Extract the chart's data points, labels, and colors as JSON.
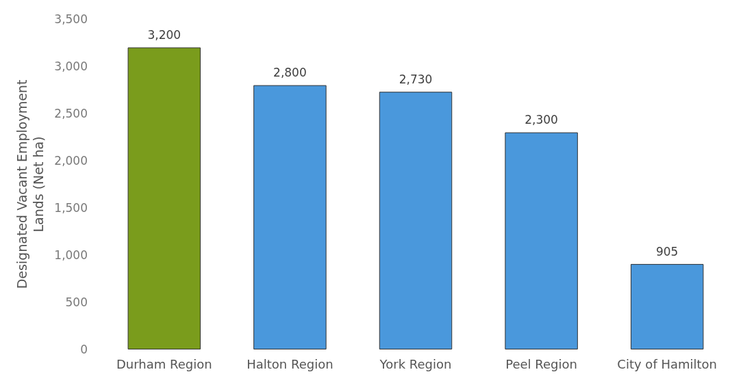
{
  "chart_data": {
    "type": "bar",
    "ylabel": "Designated Vacant Employment Lands (Net ha)",
    "categories": [
      "Durham Region",
      "Halton Region",
      "York Region",
      "Peel Region",
      "City of Hamilton"
    ],
    "values": [
      3200,
      2800,
      2730,
      2300,
      905
    ],
    "colors": [
      "#7a9c1c",
      "#4a98dc",
      "#4a98dc",
      "#4a98dc",
      "#4a98dc"
    ],
    "value_labels": [
      "3,200",
      "2,800",
      "2,730",
      "2,300",
      "905"
    ],
    "ylim": [
      0,
      3500
    ],
    "yticks": [
      {
        "value": 0,
        "label": "0"
      },
      {
        "value": 500,
        "label": "500"
      },
      {
        "value": 1000,
        "label": "1,000"
      },
      {
        "value": 1500,
        "label": "1,500"
      },
      {
        "value": 2000,
        "label": "2,000"
      },
      {
        "value": 2500,
        "label": "2,500"
      },
      {
        "value": 3000,
        "label": "3,000"
      },
      {
        "value": 3500,
        "label": "3,500"
      }
    ],
    "grid": false
  }
}
